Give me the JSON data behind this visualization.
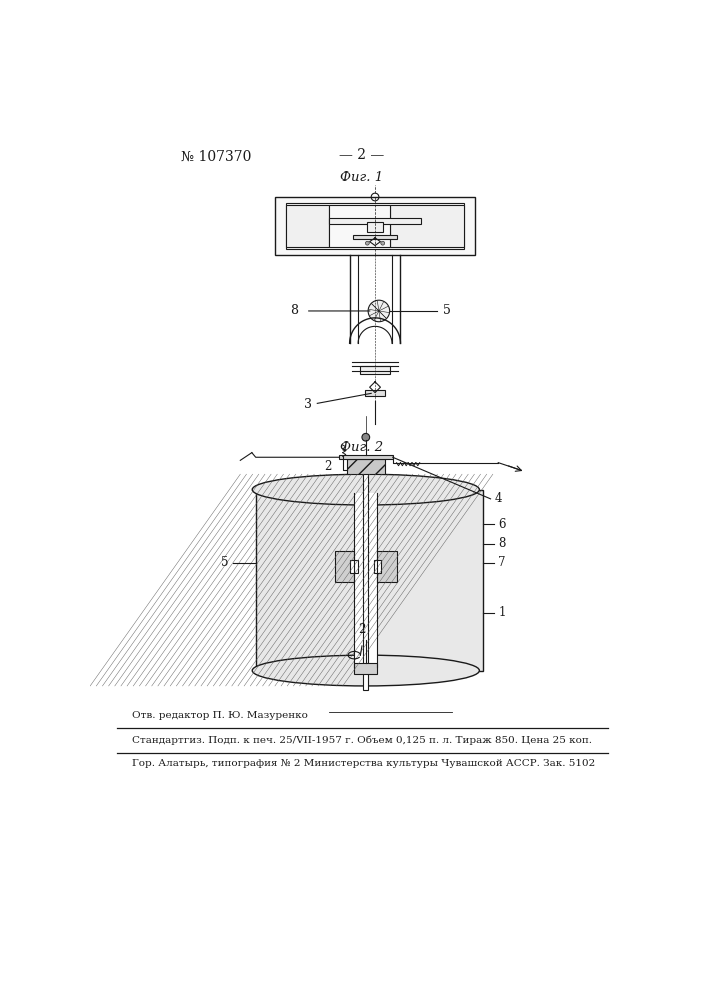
{
  "page_number": "№ 107370",
  "page_label": "— 2 —",
  "fig1_label": "Фиг. 1",
  "fig2_label": "Фиг. 2",
  "editor_line": "Отв. редактор П. Ю. Мазуренко",
  "print_line": "Стандартгиз. Подп. к печ. 25/VII-1957 г. Объем 0,125 п. л. Тираж 850. Цена 25 коп.",
  "city_line": "Гор. Алатырь, типография № 2 Министерства культуры Чувашской АССР. Зак. 5102",
  "bg_color": "#ffffff",
  "line_color": "#1a1a1a",
  "text_color": "#1a1a1a",
  "fig_width": 7.07,
  "fig_height": 10.0
}
